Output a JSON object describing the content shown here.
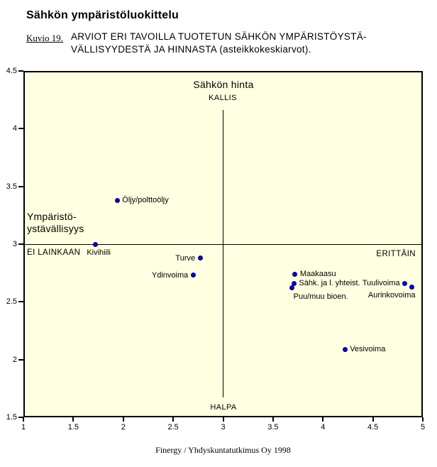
{
  "header": {
    "title": "Sähkön ympäristöluokittelu",
    "figure_label": "Kuvio 19.",
    "caption_line1": "ARVIOT ERI TAVOILLA TUOTETUN SÄHKÖN YMPÄRISTÖYSTÄ-",
    "caption_line2": "VÄLLISYYDESTÄ JA HINNASTA (asteikkokeskiarvot)."
  },
  "footer": {
    "source": "Finergy / Yhdyskuntatutkimus Oy 1998"
  },
  "chart_data": {
    "type": "scatter",
    "plot_background": "#ffffe1",
    "point_color": "#0000d9",
    "x_axis": {
      "min": 1,
      "max": 5,
      "ticks": [
        1,
        1.5,
        2,
        2.5,
        3,
        3.5,
        4,
        4.5,
        5
      ]
    },
    "y_axis": {
      "min": 1.5,
      "max": 4.5,
      "ticks": [
        4.5,
        4,
        3.5,
        3,
        2.5,
        2,
        1.5
      ]
    },
    "quadrant_lines": {
      "x": 3,
      "y": 3
    },
    "annotations": {
      "top_label": "Sähkön hinta",
      "top_sublabel": "KALLIS",
      "bottom_sublabel": "HALPA",
      "left_label_line1": "Ympäristö-",
      "left_label_line2": "ystävällisyys",
      "left_sublabel": "EI LAINKAAN",
      "right_sublabel": "ERITTÄIN"
    },
    "points": [
      {
        "label": "Öljy/polttoöljy",
        "x": 1.94,
        "y": 3.38,
        "label_anchor": "right"
      },
      {
        "label": "Kivihiili",
        "x": 1.72,
        "y": 3.0,
        "label_anchor": "below"
      },
      {
        "label": "Turve",
        "x": 2.77,
        "y": 2.88,
        "label_anchor": "left"
      },
      {
        "label": "Ydinvoima",
        "x": 2.7,
        "y": 2.73,
        "label_anchor": "left"
      },
      {
        "label": "Maakaasu",
        "x": 3.72,
        "y": 2.74,
        "label_anchor": "right"
      },
      {
        "label": "Sähk. ja l. yhteist.",
        "x": 3.71,
        "y": 2.66,
        "label_anchor": "right"
      },
      {
        "label": "Puu/muu bioen.",
        "x": 3.69,
        "y": 2.62,
        "label_anchor": "below-right"
      },
      {
        "label": "Tuulivoima",
        "x": 4.82,
        "y": 2.66,
        "label_anchor": "left"
      },
      {
        "label": "Aurinkovoima",
        "x": 4.89,
        "y": 2.63,
        "label_anchor": "below-left"
      },
      {
        "label": "Vesivoima",
        "x": 4.22,
        "y": 2.09,
        "label_anchor": "right"
      }
    ]
  }
}
